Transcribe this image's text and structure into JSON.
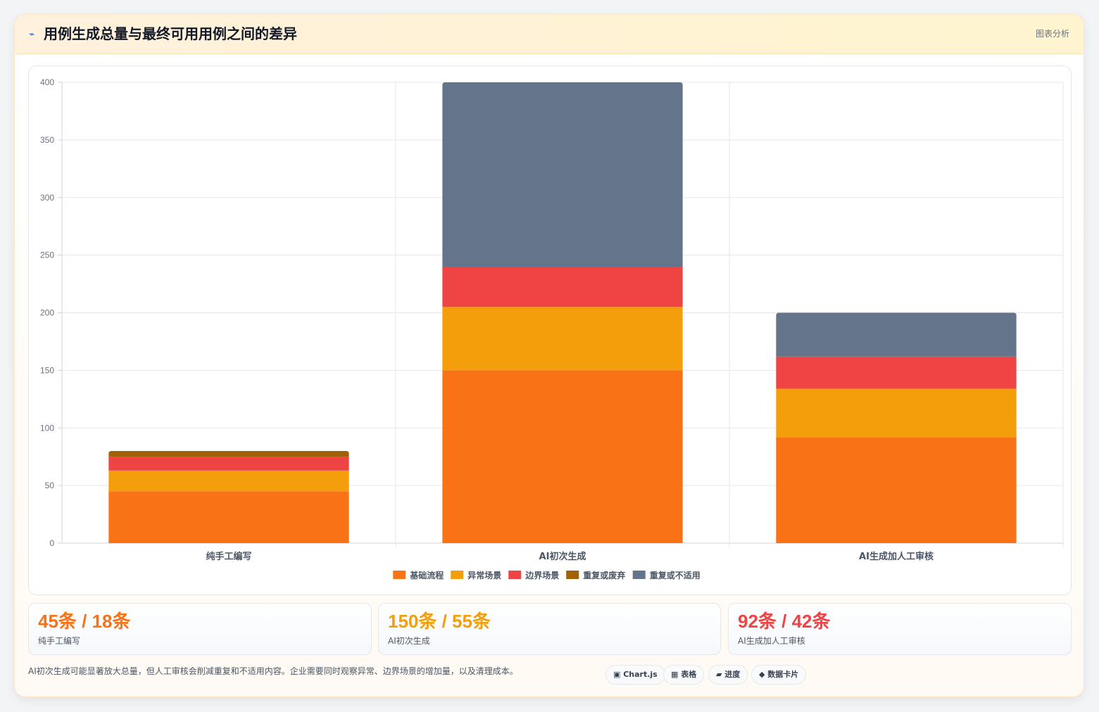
{
  "header": {
    "icon": "⌁",
    "icon_name": "lightning-icon",
    "title": "用例生成总量与最终可用用例之间的差异",
    "tag": "图表分析"
  },
  "chart_data": {
    "type": "bar",
    "stacked": true,
    "categories": [
      "纯手工编写",
      "AI初次生成",
      "AI生成加人工审核"
    ],
    "series": [
      {
        "name": "基础流程",
        "color": "#f97316",
        "values": [
          45,
          150,
          92
        ]
      },
      {
        "name": "异常场景",
        "color": "#f59e0b",
        "values": [
          18,
          55,
          42
        ]
      },
      {
        "name": "边界场景",
        "color": "#ef4444",
        "values": [
          12,
          35,
          28
        ]
      },
      {
        "name": "重复或废弃",
        "color": "#a16207",
        "values": [
          5,
          0,
          0
        ]
      },
      {
        "name": "重复或不适用",
        "color": "#64748b",
        "values": [
          0,
          160,
          38
        ]
      }
    ],
    "ylim": [
      0,
      400
    ],
    "yticks": [
      0,
      50,
      100,
      150,
      200,
      250,
      300,
      350,
      400
    ],
    "grid": true,
    "legend": "bottom-center"
  },
  "stats": [
    {
      "value": "45条 / 18条",
      "label": "纯手工编写",
      "color": "#f97316"
    },
    {
      "value": "150条 / 55条",
      "label": "AI初次生成",
      "color": "#f59e0b"
    },
    {
      "value": "92条 / 42条",
      "label": "AI生成加人工审核",
      "color": "#ef4444"
    }
  ],
  "footnote": "AI初次生成可能显著放大总量，但人工审核会削减重复和不适用内容。企业需要同时观察异常、边界场景的增加量，以及清理成本。",
  "chips": [
    {
      "label": "▣ Chart.js"
    },
    {
      "label": "▦ 表格"
    },
    {
      "label": "▰ 进度"
    },
    {
      "label": "◆ 数据卡片"
    }
  ]
}
